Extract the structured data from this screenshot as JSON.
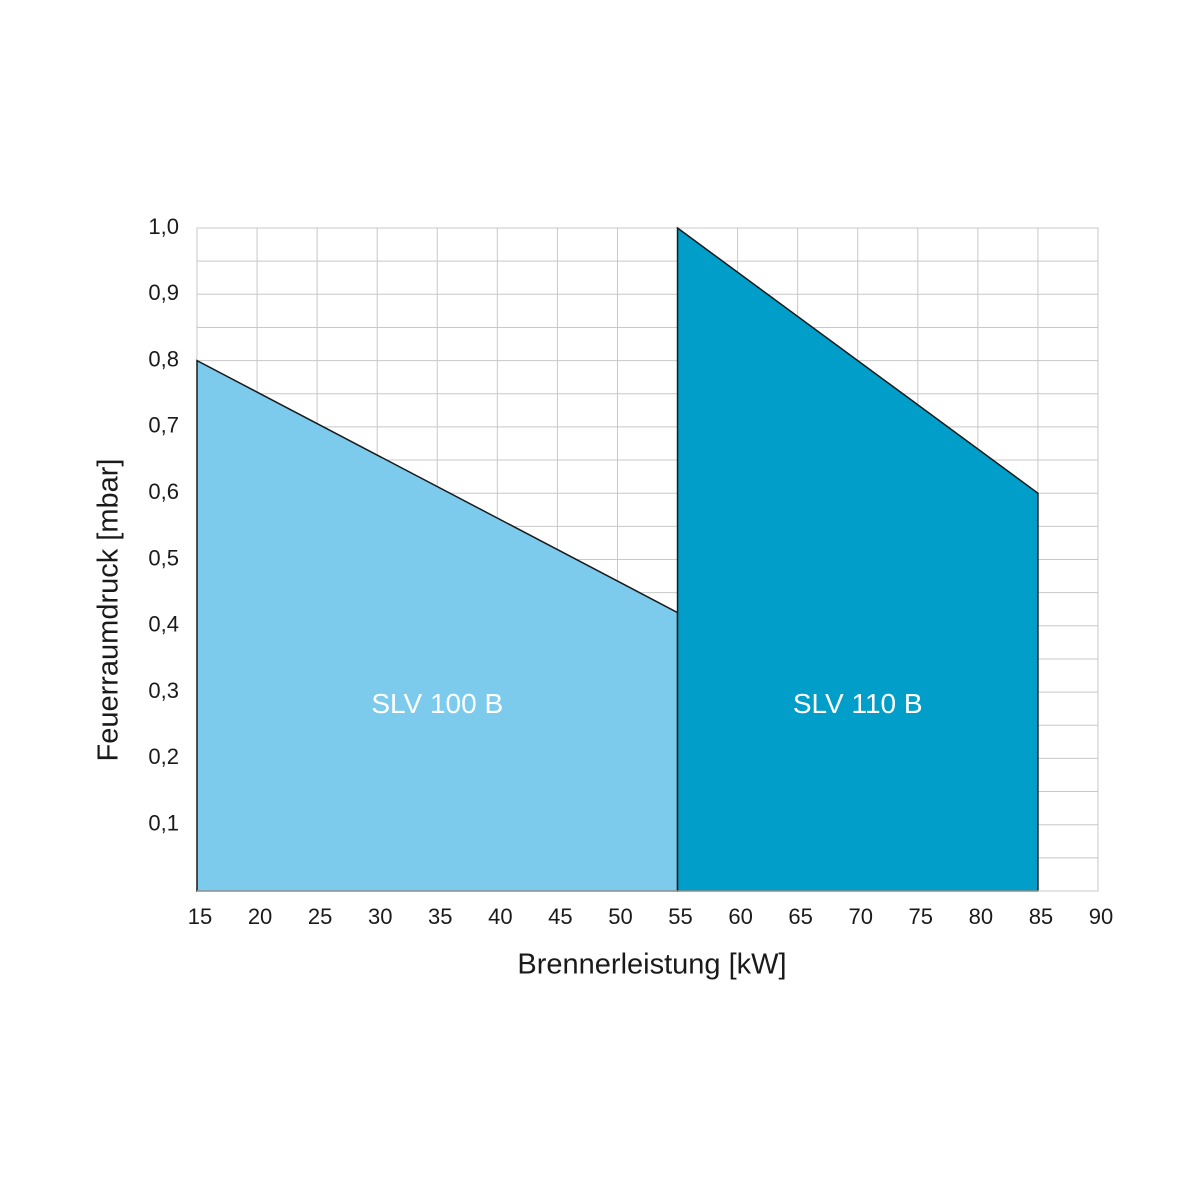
{
  "chart_data": {
    "type": "area",
    "x_label": "Brennerleistung [kW]",
    "y_label": "Feuerraumdruck [mbar]",
    "xlim": [
      15,
      90
    ],
    "ylim": [
      0,
      1
    ],
    "xticks": [
      15,
      20,
      25,
      30,
      35,
      40,
      45,
      50,
      55,
      60,
      65,
      70,
      75,
      80,
      85,
      90
    ],
    "yticks": [
      {
        "value": 0.1,
        "label": "0,1"
      },
      {
        "value": 0.2,
        "label": "0,2"
      },
      {
        "value": 0.3,
        "label": "0,3"
      },
      {
        "value": 0.4,
        "label": "0,4"
      },
      {
        "value": 0.5,
        "label": "0,5"
      },
      {
        "value": 0.6,
        "label": "0,6"
      },
      {
        "value": 0.7,
        "label": "0,7"
      },
      {
        "value": 0.8,
        "label": "0,8"
      },
      {
        "value": 0.9,
        "label": "0,9"
      },
      {
        "value": 1,
        "label": "1,0"
      }
    ],
    "minor_yticks": [
      0.05,
      0.15,
      0.25,
      0.35,
      0.45,
      0.55,
      0.65,
      0.75,
      0.85,
      0.95
    ],
    "grid": true,
    "series": [
      {
        "name": "SLV 100 B",
        "color": "#7ccbed",
        "x": [
          15,
          55
        ],
        "values": [
          0.8,
          0.42
        ]
      },
      {
        "name": "SLV 110 B",
        "color": "#009ec8",
        "x": [
          55,
          85
        ],
        "values": [
          1.0,
          0.6
        ]
      }
    ]
  }
}
